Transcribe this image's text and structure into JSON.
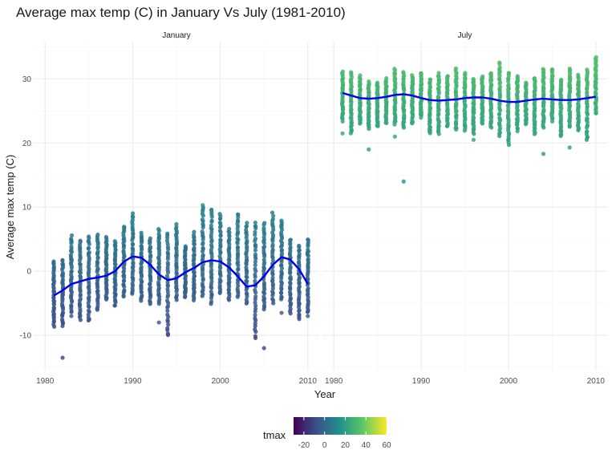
{
  "chart_data": {
    "type": "scatter",
    "title": "Average max temp (C) in January Vs July (1981-2010)",
    "xlabel": "Year",
    "ylabel": "Average max temp (C)",
    "xlim": [
      1980,
      2010
    ],
    "ylim": [
      -15,
      35
    ],
    "x_ticks": [
      1980,
      1990,
      2000,
      2010
    ],
    "y_ticks": [
      -10,
      0,
      10,
      20,
      30
    ],
    "grid": true,
    "facets": [
      {
        "label": "January",
        "years": [
          1981,
          1982,
          1983,
          1984,
          1985,
          1986,
          1987,
          1988,
          1989,
          1990,
          1991,
          1992,
          1993,
          1994,
          1995,
          1996,
          1997,
          1998,
          1999,
          2000,
          2001,
          2002,
          2003,
          2004,
          2005,
          2006,
          2007,
          2008,
          2009,
          2010
        ],
        "max": [
          1.5,
          1.8,
          5.5,
          4.8,
          5.5,
          5.6,
          5.2,
          4.8,
          7,
          9,
          6,
          5,
          6.5,
          6,
          7.2,
          4,
          6,
          10,
          9.5,
          9,
          6.5,
          9,
          7.5,
          7.5,
          7.5,
          9,
          8,
          5,
          4,
          5
        ],
        "min": [
          -8.5,
          -8.5,
          -6.5,
          -7.5,
          -7.8,
          -6,
          -4.5,
          -5.5,
          -4,
          -3.5,
          -4.5,
          -5,
          -5,
          -10,
          -4.5,
          -4,
          -4.5,
          -4,
          -5,
          -3.5,
          -4.5,
          -4,
          -5,
          -10.5,
          -6,
          -5,
          -4.5,
          -6.5,
          -7.5,
          -6.5
        ],
        "outliers": [
          {
            "x": 1982,
            "y": -13.5
          },
          {
            "x": 1983,
            "y": -7
          },
          {
            "x": 1993,
            "y": -8
          },
          {
            "x": 1998,
            "y": 10.3
          },
          {
            "x": 1999,
            "y": 9.5
          },
          {
            "x": 2004,
            "y": 4
          },
          {
            "x": 2004,
            "y": 7
          },
          {
            "x": 2005,
            "y": -12
          },
          {
            "x": 2007,
            "y": -6.5
          },
          {
            "x": 2010,
            "y": -7
          }
        ],
        "smooth": [
          [
            1981,
            -3.8
          ],
          [
            1982,
            -3
          ],
          [
            1983,
            -2
          ],
          [
            1984,
            -1.6
          ],
          [
            1985,
            -1.2
          ],
          [
            1986,
            -1
          ],
          [
            1987,
            -0.7
          ],
          [
            1988,
            0
          ],
          [
            1989,
            1.5
          ],
          [
            1990,
            2.3
          ],
          [
            1991,
            2.1
          ],
          [
            1992,
            1
          ],
          [
            1993,
            -0.5
          ],
          [
            1994,
            -1.4
          ],
          [
            1995,
            -1.1
          ],
          [
            1996,
            -0.2
          ],
          [
            1997,
            0.5
          ],
          [
            1998,
            1.4
          ],
          [
            1999,
            1.7
          ],
          [
            2000,
            1.5
          ],
          [
            2001,
            0.6
          ],
          [
            2002,
            -0.8
          ],
          [
            2003,
            -2.4
          ],
          [
            2004,
            -2.2
          ],
          [
            2005,
            -0.8
          ],
          [
            2006,
            1
          ],
          [
            2007,
            2.2
          ],
          [
            2008,
            1.8
          ],
          [
            2009,
            0.3
          ],
          [
            2010,
            -2
          ]
        ]
      },
      {
        "label": "July",
        "years": [
          1981,
          1982,
          1983,
          1984,
          1985,
          1986,
          1987,
          1988,
          1989,
          1990,
          1991,
          1992,
          1993,
          1994,
          1995,
          1996,
          1997,
          1998,
          1999,
          2000,
          2001,
          2002,
          2003,
          2004,
          2005,
          2006,
          2007,
          2008,
          2009,
          2010
        ],
        "max": [
          31,
          31,
          30.5,
          29.5,
          29.5,
          30,
          31.5,
          31,
          30.5,
          31,
          30,
          30.8,
          30.5,
          31.5,
          31,
          30,
          30.5,
          31,
          32.5,
          31,
          30.5,
          29.5,
          30.2,
          31.5,
          31.5,
          30,
          31.5,
          30.5,
          31.5,
          33.5
        ],
        "min": [
          23.5,
          21.5,
          23,
          22.2,
          22.5,
          23,
          23,
          22.5,
          23,
          24,
          21.5,
          21.5,
          22.5,
          22,
          22,
          21.5,
          23,
          22.5,
          21,
          19.8,
          22,
          23,
          21.5,
          22.5,
          23.5,
          21,
          22.5,
          22,
          20.5,
          24.5
        ],
        "outliers": [
          {
            "x": 1981,
            "y": 21.5
          },
          {
            "x": 1984,
            "y": 19
          },
          {
            "x": 1987,
            "y": 21
          },
          {
            "x": 1988,
            "y": 14
          },
          {
            "x": 1996,
            "y": 20.5
          },
          {
            "x": 2004,
            "y": 18.3
          },
          {
            "x": 2007,
            "y": 19.3
          }
        ],
        "smooth": [
          [
            1981,
            27.8
          ],
          [
            1982,
            27.4
          ],
          [
            1983,
            27
          ],
          [
            1984,
            26.9
          ],
          [
            1985,
            27
          ],
          [
            1986,
            27.2
          ],
          [
            1987,
            27.5
          ],
          [
            1988,
            27.6
          ],
          [
            1989,
            27.4
          ],
          [
            1990,
            27
          ],
          [
            1991,
            26.7
          ],
          [
            1992,
            26.6
          ],
          [
            1993,
            26.7
          ],
          [
            1994,
            26.8
          ],
          [
            1995,
            27
          ],
          [
            1996,
            27.1
          ],
          [
            1997,
            27.1
          ],
          [
            1998,
            26.9
          ],
          [
            1999,
            26.6
          ],
          [
            2000,
            26.4
          ],
          [
            2001,
            26.4
          ],
          [
            2002,
            26.6
          ],
          [
            2003,
            26.8
          ],
          [
            2004,
            26.9
          ],
          [
            2005,
            26.8
          ],
          [
            2006,
            26.7
          ],
          [
            2007,
            26.7
          ],
          [
            2008,
            26.8
          ],
          [
            2009,
            27
          ],
          [
            2010,
            27.2
          ]
        ]
      }
    ],
    "legend": {
      "title": "tmax",
      "placement": "bottom",
      "range": [
        -30,
        60
      ],
      "ticks": [
        -20,
        0,
        20,
        40,
        60
      ],
      "colors": [
        "#440154",
        "#3b528b",
        "#21918c",
        "#5ec962",
        "#fde725"
      ]
    },
    "colors": {
      "smooth_line": "#0000ee",
      "panel_grid_major": "#ebebeb",
      "panel_grid_minor": "#f5f5f5"
    }
  }
}
